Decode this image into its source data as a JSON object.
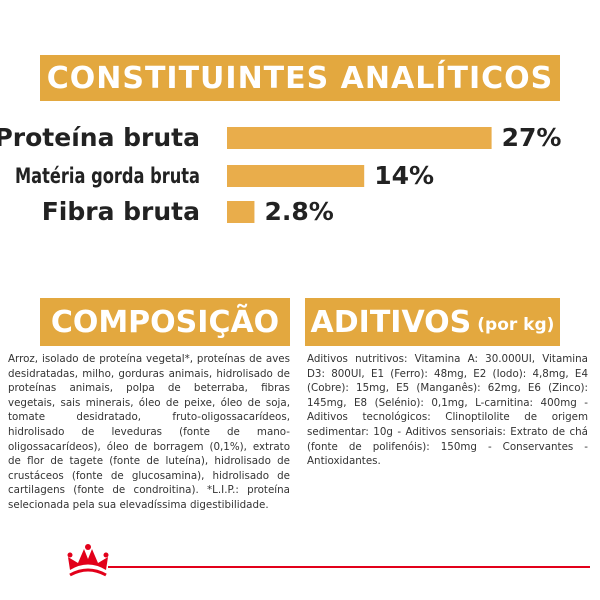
{
  "header": {
    "title": "CONSTITUINTES ANALÍTICOS"
  },
  "chart_data": {
    "type": "bar",
    "orientation": "horizontal",
    "categories": [
      "Proteína bruta",
      "Matéria gorda bruta",
      "Fibra bruta"
    ],
    "values": [
      27,
      14,
      2.8
    ],
    "value_labels": [
      "27%",
      "14%",
      "2.8%"
    ],
    "color": "#e9ad4b"
  },
  "composition": {
    "title": "COMPOSIÇÃO",
    "text": "Arroz, isolado de proteína vegetal*, proteínas de aves desidratadas, milho, gorduras animais, hidrolisado de proteínas animais, polpa de beterraba, fibras vegetais, sais minerais, óleo de peixe, óleo de soja, tomate desidratado, fruto-oligossacarídeos, hidrolisado de leveduras (fonte de mano-oligossacarídeos), óleo de borragem (0,1%), extrato de flor de tagete (fonte de luteína), hidrolisado de crustáceos (fonte de glucosamina), hidrolisado de cartilagens (fonte de condroitina). *L.I.P.: proteína selecionada pela sua elevadíssima digestibilidade."
  },
  "additives": {
    "title": "ADITIVOS",
    "subtitle": "(por kg)",
    "text": "Aditivos nutritivos: Vitamina A: 30.000UI, Vitamina D3: 800UI, E1 (Ferro): 48mg, E2 (Iodo): 4,8mg, E4 (Cobre): 15mg, E5 (Manganês): 62mg, E6 (Zinco): 145mg, E8 (Selénio): 0,1mg, L-carnitina: 400mg - Aditivos tecnológicos: Clinoptilolite de origem sedimentar: 10g - Aditivos sensoriais: Extrato de chá (fonte de polifenóis): 150mg - Conservantes - Antioxidantes."
  }
}
